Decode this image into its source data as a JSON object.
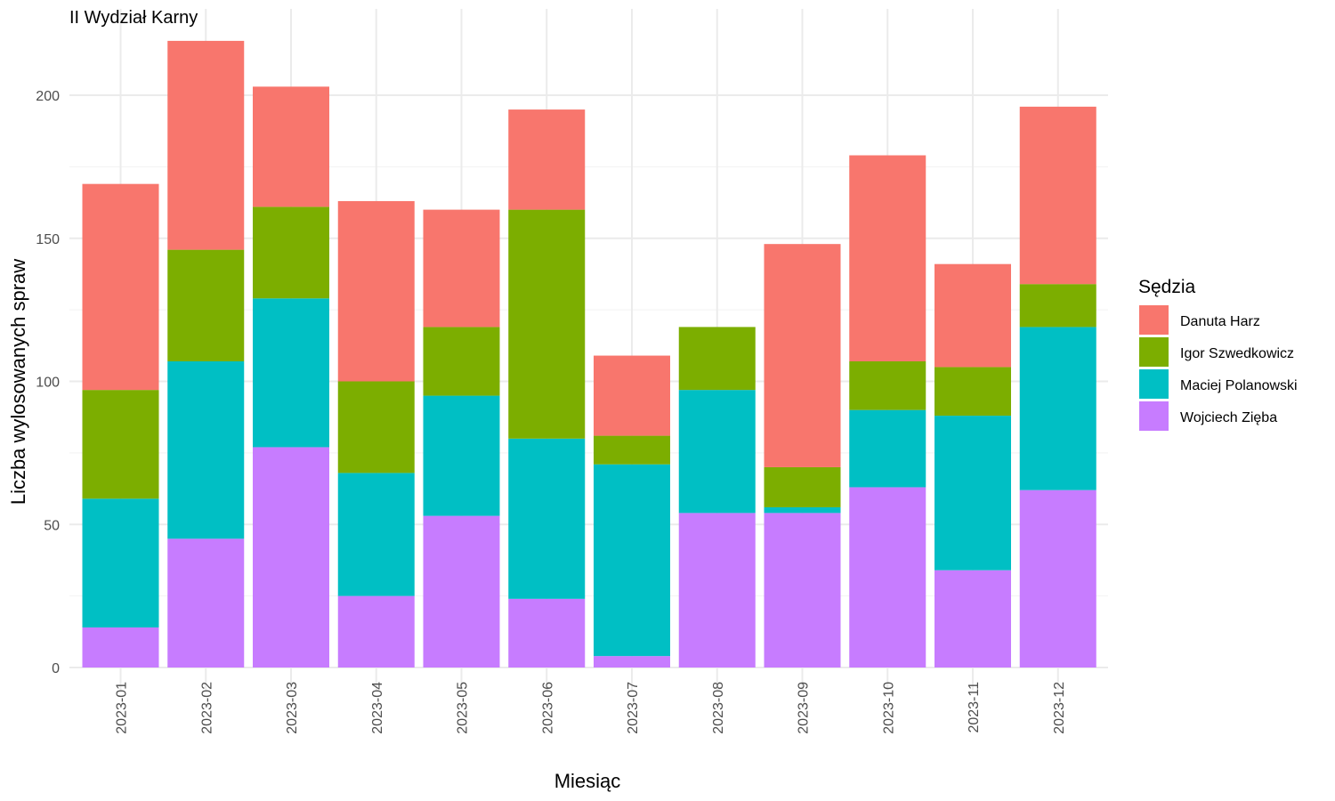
{
  "chart_data": {
    "type": "bar",
    "stacked": true,
    "title": "II Wydział Karny",
    "xlabel": "Miesiąc",
    "ylabel": "Liczba wylosowanych spraw",
    "ylim": [
      0,
      220
    ],
    "yticks": [
      0,
      50,
      100,
      150,
      200
    ],
    "grid": true,
    "legend_title": "Sędzia",
    "legend_position": "right",
    "categories": [
      "2023-01",
      "2023-02",
      "2023-03",
      "2023-04",
      "2023-05",
      "2023-06",
      "2023-07",
      "2023-08",
      "2023-09",
      "2023-10",
      "2023-11",
      "2023-12"
    ],
    "series": [
      {
        "name": "Wojciech Zięba",
        "color": "#C77CFF",
        "values": [
          14,
          45,
          77,
          25,
          53,
          24,
          4,
          54,
          54,
          63,
          34,
          62
        ]
      },
      {
        "name": "Maciej Polanowski",
        "color": "#00BFC4",
        "values": [
          45,
          62,
          52,
          43,
          42,
          56,
          67,
          43,
          2,
          27,
          54,
          57
        ]
      },
      {
        "name": "Igor Szwedkowicz",
        "color": "#7CAE00",
        "values": [
          38,
          39,
          32,
          32,
          24,
          80,
          10,
          22,
          14,
          17,
          17,
          15
        ]
      },
      {
        "name": "Danuta Harz",
        "color": "#F8766D",
        "values": [
          72,
          73,
          42,
          63,
          41,
          35,
          28,
          0,
          78,
          72,
          36,
          62
        ]
      }
    ],
    "legend_order": [
      "Danuta Harz",
      "Igor Szwedkowicz",
      "Maciej Polanowski",
      "Wojciech Zięba"
    ]
  }
}
